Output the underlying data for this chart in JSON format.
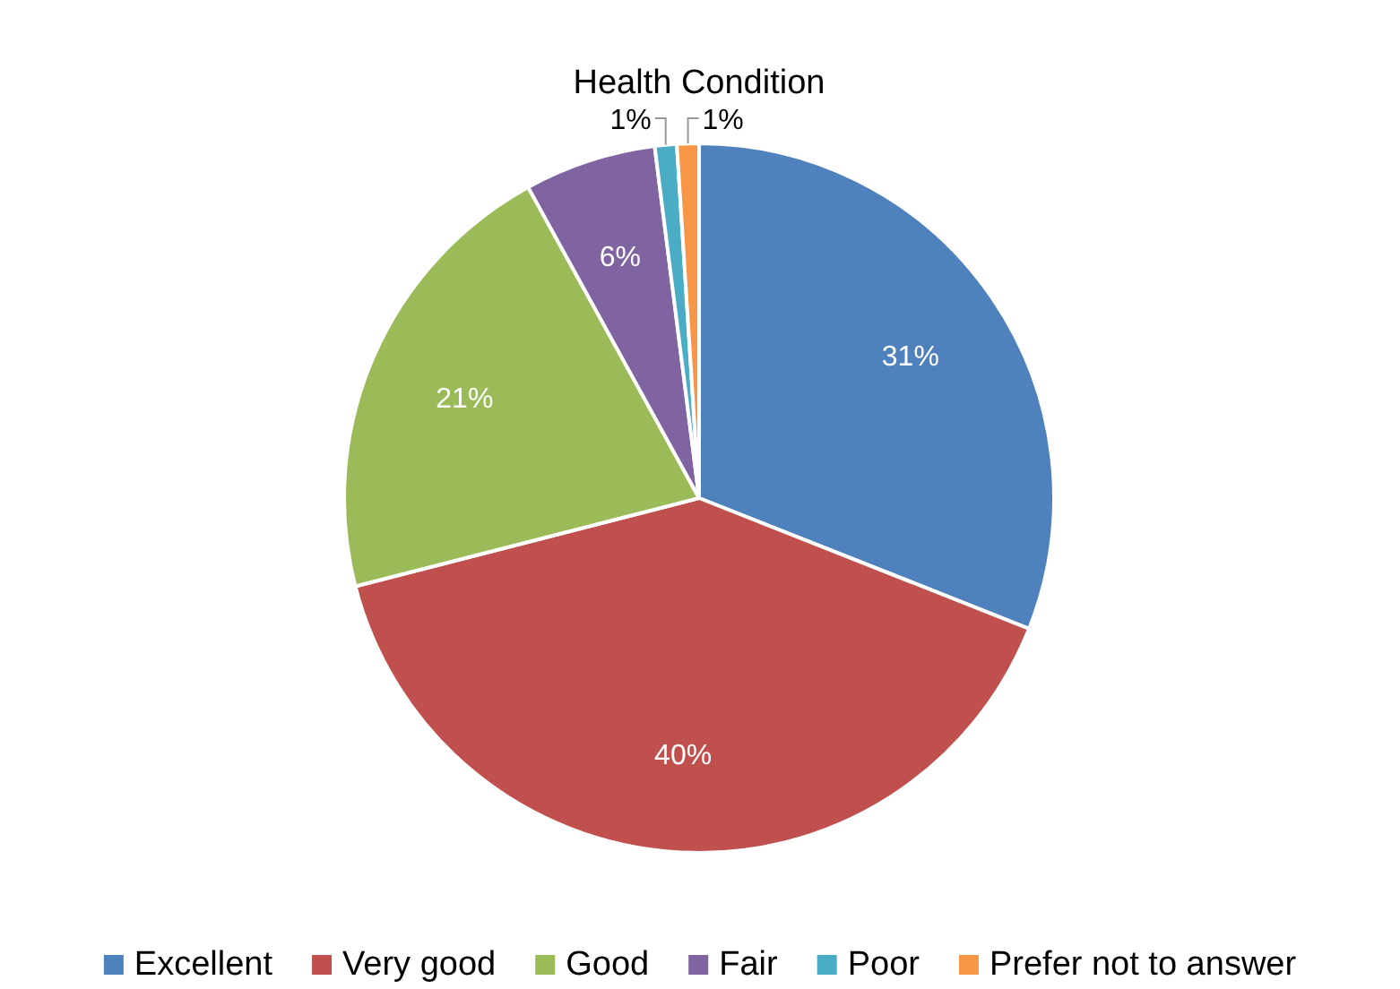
{
  "chart_data": {
    "type": "pie",
    "title": "Health Condition",
    "categories": [
      "Excellent",
      "Very good",
      "Good",
      "Fair",
      "Poor",
      "Prefer not to answer"
    ],
    "values": [
      31,
      40,
      21,
      6,
      1,
      1
    ],
    "value_labels": [
      "31%",
      "40%",
      "21%",
      "6%",
      "1%",
      "1%"
    ],
    "colors": [
      "#4f81bd",
      "#c0504d",
      "#9bbb59",
      "#8064a2",
      "#4bacc6",
      "#f79646"
    ],
    "legend": "bottom"
  }
}
